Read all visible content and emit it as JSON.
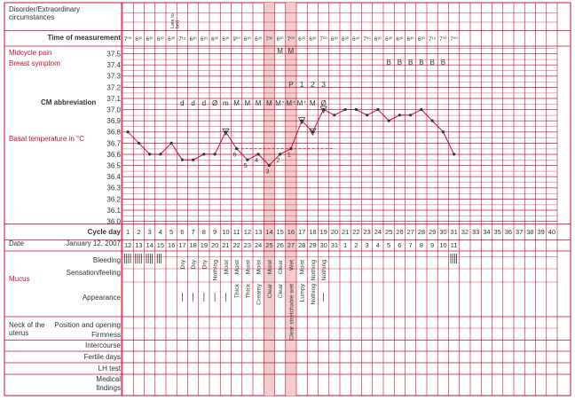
{
  "labels": {
    "disorder": [
      "Disorder/Extraordinary",
      "circumstances"
    ],
    "time_of_measurement": "Time of measurement",
    "midcycle_pain": "Midcycle pain",
    "breast_symptom": "Breast symptom",
    "cm_abbreviation": "CM abbreviation",
    "basal_temperature": "Basal temperature in °C",
    "cycle_day": "Cycle day",
    "date": "Date",
    "date_value": "January 12, 2007",
    "mucus": "Mucus",
    "bleeding": "Bleeding",
    "sensation": "Sensation/feeling",
    "appearance": "Appearance",
    "neck_of_uterus": [
      "Neck of the",
      "uterus"
    ],
    "position_opening": "Position and opening",
    "firmness": "Firmness",
    "intercourse": "Intercourse",
    "fertile_days": "Fertile days",
    "lh_test": "LH test",
    "medical_findings": [
      "Medical",
      "findings"
    ],
    "late_to_bed": [
      "Late to",
      "bed"
    ]
  },
  "temp_scale": [
    "37.5",
    "37.4",
    "37.3",
    "37.2",
    "37.1",
    "37.0",
    "36.9",
    "36.8",
    "36.7",
    "36.6",
    "36.5",
    "36.4",
    "36.3",
    "36.2",
    "36.1",
    "36.0"
  ],
  "times": [
    "7⁰⁰",
    "6³⁰",
    "6³⁰",
    "6³⁰",
    "6³⁰",
    "7¹⁵",
    "6³⁰",
    "6³⁰",
    "6³⁰",
    "6³⁰",
    "9⁰⁰",
    "6³⁰",
    "6³⁰",
    "7³⁰",
    "6³⁰",
    "7⁰⁰",
    "6³⁰",
    "6³⁰",
    "7⁰⁰",
    "6³⁰",
    "6³⁰",
    "6⁴⁰",
    "7⁰⁰",
    "6³⁰",
    "6³⁰",
    "6³⁰",
    "6³⁰",
    "6³⁰",
    "7¹⁵",
    "7⁰⁰",
    "7⁰⁰"
  ],
  "midcycle_marks": {
    "15": "M",
    "16": "M"
  },
  "breast_marks": {
    "25": "B",
    "26": "B",
    "27": "B",
    "28": "B",
    "29": "B",
    "30": "B"
  },
  "peak_marks": {
    "16": "P",
    "17": "1",
    "18": "2",
    "19": "3"
  },
  "cm_marks": {
    "6": "d",
    "7": "d",
    "8": "d",
    "9": "Ø",
    "10": "m",
    "11": "M",
    "12": "M",
    "13": "M",
    "14": "M",
    "15": "M⁺",
    "16": "M⁺",
    "17": "M⁺",
    "18": "M",
    "19": "Ø"
  },
  "cycle_days": [
    "1",
    "2",
    "3",
    "4",
    "5",
    "6",
    "7",
    "8",
    "9",
    "10",
    "11",
    "12",
    "13",
    "14",
    "15",
    "16",
    "17",
    "18",
    "19",
    "20",
    "21",
    "22",
    "23",
    "24",
    "25",
    "26",
    "27",
    "28",
    "29",
    "30",
    "31",
    "32",
    "33",
    "34",
    "35",
    "36",
    "37",
    "38",
    "39",
    "40"
  ],
  "dates": [
    "12",
    "13",
    "14",
    "15",
    "16",
    "17",
    "18",
    "19",
    "20",
    "21",
    "22",
    "23",
    "24",
    "25",
    "26",
    "27",
    "28",
    "29",
    "30",
    "31",
    "1",
    "2",
    "3",
    "4",
    "5",
    "6",
    "7",
    "8",
    "9",
    "10",
    "11"
  ],
  "sensation": {
    "6": "Dry",
    "7": "Dry",
    "8": "Dry",
    "9": "Nothing",
    "10": "Moist",
    "11": "Moist",
    "12": "Moist",
    "13": "Moist",
    "14": "Moist",
    "15": "Clear",
    "16": "Wet",
    "17": "Moist",
    "18": "Nothing",
    "19": "Nothing"
  },
  "appearance": {
    "11": "Thick",
    "12": "Thick",
    "13": "Creamy",
    "14": "Clear",
    "15": "Clear",
    "16": "Clear stretchable wet",
    "17": "Lumpy",
    "18": "Nothing"
  },
  "chart_data": {
    "type": "line",
    "ylabel": "Basal temperature in °C",
    "ylim": [
      36.0,
      37.5
    ],
    "x": [
      1,
      2,
      3,
      4,
      5,
      6,
      7,
      8,
      9,
      10,
      11,
      12,
      13,
      14,
      15,
      16,
      17,
      18,
      19,
      20,
      21,
      22,
      23,
      24,
      25,
      26,
      27,
      28,
      29,
      30,
      31
    ],
    "values": [
      36.8,
      36.7,
      36.6,
      36.6,
      36.7,
      36.55,
      36.55,
      36.6,
      36.6,
      36.8,
      36.65,
      36.55,
      36.6,
      36.5,
      36.6,
      36.65,
      36.9,
      36.8,
      37.0,
      36.95,
      37.0,
      37.0,
      36.95,
      37.0,
      36.9,
      36.95,
      36.95,
      37.0,
      36.9,
      36.8,
      36.6
    ],
    "low_labels": {
      "11": "6",
      "12": "5",
      "13": "4",
      "14": "3",
      "15": "2",
      "16": "1"
    },
    "coverline": 36.65,
    "colors": {
      "line": "#c8102e",
      "grid": "#c8102e",
      "band": "#f0c8c8"
    }
  }
}
